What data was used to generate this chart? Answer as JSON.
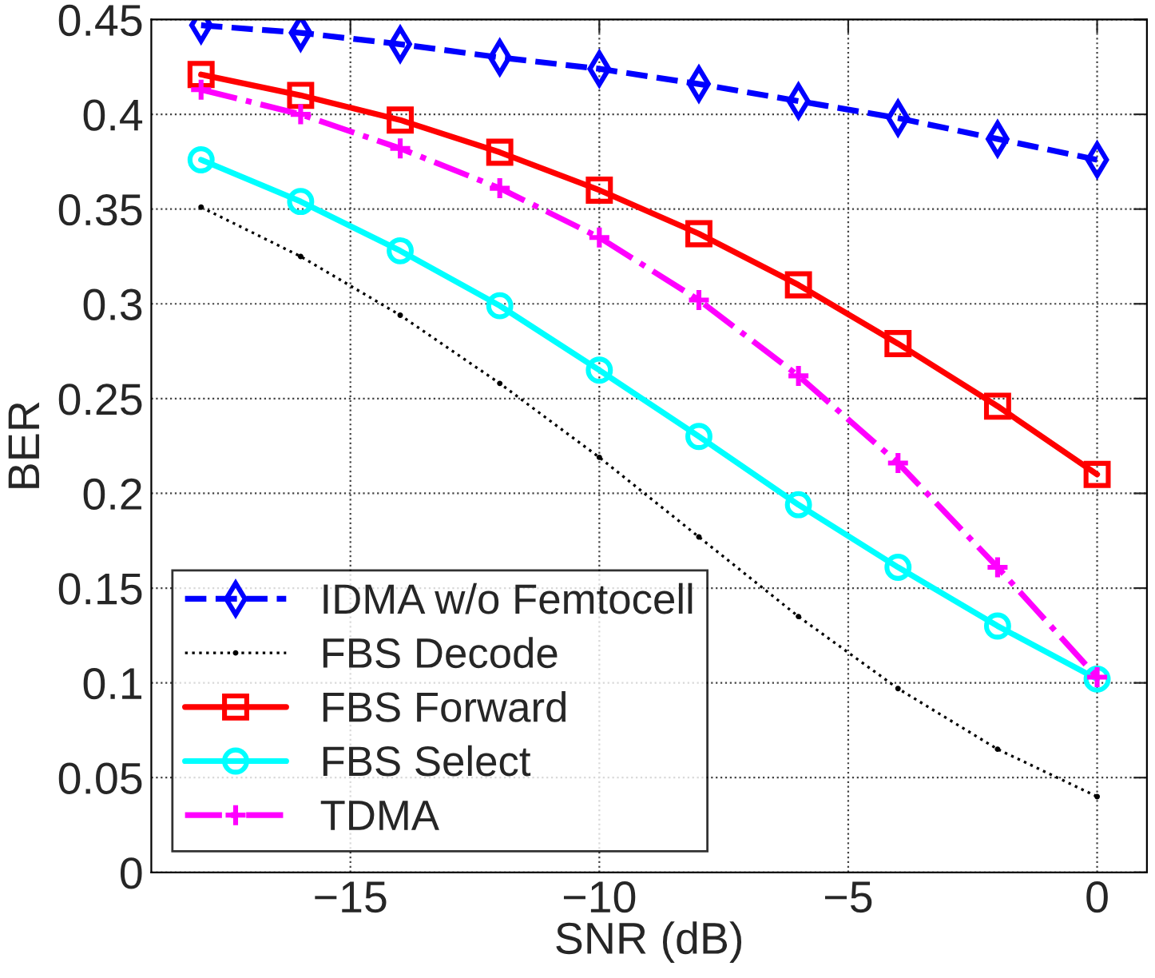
{
  "chart_data": {
    "type": "line",
    "xlabel": "SNR (dB)",
    "ylabel": "BER",
    "x": [
      -18,
      -16,
      -14,
      -12,
      -10,
      -8,
      -6,
      -4,
      -2,
      0
    ],
    "series": [
      {
        "name": "IDMA w/o Femtocell",
        "color": "#0000ff",
        "line_style": "dashed",
        "marker": "diamond",
        "values": [
          0.447,
          0.443,
          0.437,
          0.43,
          0.424,
          0.416,
          0.407,
          0.398,
          0.387,
          0.376
        ]
      },
      {
        "name": "FBS Decode",
        "color": "#000000",
        "line_style": "dotted",
        "marker": "point",
        "values": [
          0.351,
          0.325,
          0.294,
          0.258,
          0.219,
          0.177,
          0.135,
          0.097,
          0.065,
          0.04
        ]
      },
      {
        "name": "FBS Forward",
        "color": "#ff0000",
        "line_style": "solid",
        "marker": "square",
        "values": [
          0.421,
          0.41,
          0.397,
          0.38,
          0.36,
          0.337,
          0.31,
          0.279,
          0.246,
          0.21
        ]
      },
      {
        "name": "FBS Select",
        "color": "#00ffff",
        "line_style": "solid",
        "marker": "circle",
        "values": [
          0.376,
          0.354,
          0.328,
          0.299,
          0.265,
          0.23,
          0.194,
          0.161,
          0.13,
          0.102
        ]
      },
      {
        "name": "TDMA",
        "color": "#ff00ff",
        "line_style": "dashdot",
        "marker": "plus",
        "values": [
          0.413,
          0.4,
          0.382,
          0.361,
          0.335,
          0.302,
          0.262,
          0.216,
          0.161,
          0.103
        ]
      }
    ],
    "xlim": [
      -19,
      1
    ],
    "xticks": [
      {
        "value": -15,
        "label": "−15"
      },
      {
        "value": -10,
        "label": "−10"
      },
      {
        "value": -5,
        "label": "−5"
      },
      0
    ],
    "ylim": [
      0,
      0.45
    ],
    "yticks": [
      0,
      0.05,
      0.1,
      0.15,
      0.2,
      0.25,
      0.3,
      0.35,
      0.4,
      0.45
    ],
    "grid": true,
    "legend": "bottom left"
  }
}
